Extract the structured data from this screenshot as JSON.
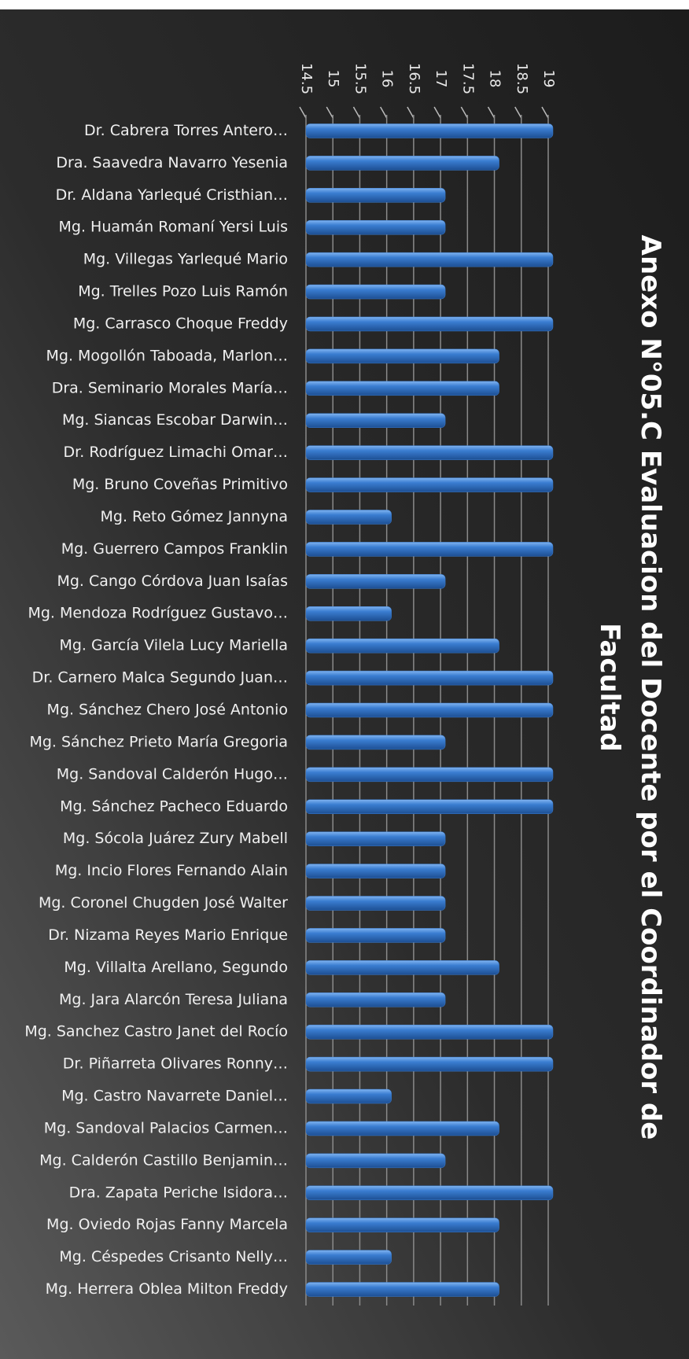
{
  "chart_data": {
    "type": "bar",
    "orientation": "horizontal",
    "title": "Anexo N°05.C  Evaluacion del Docente por el Coordinador de Facultad",
    "categories": [
      "Dr. Cabrera Torres Antero…",
      "Dra. Saavedra Navarro Yesenia",
      "Dr. Aldana Yarlequé Cristhian…",
      "Mg. Huamán Romaní Yersi Luis",
      "Mg. Villegas Yarlequé Mario",
      "Mg. Trelles Pozo Luis Ramón",
      "Mg. Carrasco Choque Freddy",
      "Mg. Mogollón Taboada, Marlon…",
      "Dra. Seminario Morales María…",
      "Mg. Siancas Escobar Darwin…",
      "Dr. Rodríguez Limachi Omar…",
      "Mg. Bruno Coveñas Primitivo",
      "Mg. Reto Gómez Jannyna",
      "Mg. Guerrero Campos Franklin",
      "Mg. Cango Córdova Juan Isaías",
      "Mg. Mendoza Rodríguez Gustavo…",
      "Mg. García Vilela Lucy Mariella",
      "Dr. Carnero Malca Segundo Juan…",
      "Mg. Sánchez Chero José Antonio",
      "Mg. Sánchez Prieto María Gregoria",
      "Mg. Sandoval Calderón Hugo…",
      "Mg. Sánchez Pacheco Eduardo",
      "Mg. Sócola Juárez Zury Mabell",
      "Mg. Incio Flores Fernando Alain",
      "Mg. Coronel Chugden José Walter",
      "Dr. Nizama Reyes Mario Enrique",
      "Mg. Villalta Arellano, Segundo",
      "Mg. Jara Alarcón Teresa Juliana",
      "Mg. Sanchez Castro Janet del Rocío",
      "Dr. Piñarreta Olivares Ronny…",
      "Mg. Castro Navarrete Daniel…",
      "Mg. Sandoval Palacios Carmen…",
      "Mg. Calderón Castillo Benjamin…",
      "Dra. Zapata Periche Isidora…",
      "Mg. Oviedo Rojas Fanny Marcela",
      "Mg. Céspedes Crisanto Nelly…",
      "Mg. Herrera Oblea Milton Freddy"
    ],
    "values": [
      19,
      18,
      17,
      17,
      19,
      17,
      19,
      18,
      18,
      17,
      19,
      19,
      16,
      19,
      17,
      16,
      18,
      19,
      19,
      17,
      19,
      19,
      17,
      17,
      17,
      17,
      18,
      17,
      19,
      19,
      16,
      18,
      17,
      19,
      18,
      16,
      18
    ],
    "color": "#3a7dd1",
    "xlim": [
      14.5,
      19
    ],
    "xticks": [
      14.5,
      15,
      15.5,
      16,
      16.5,
      17,
      17.5,
      18,
      18.5,
      19
    ],
    "grid": true
  }
}
